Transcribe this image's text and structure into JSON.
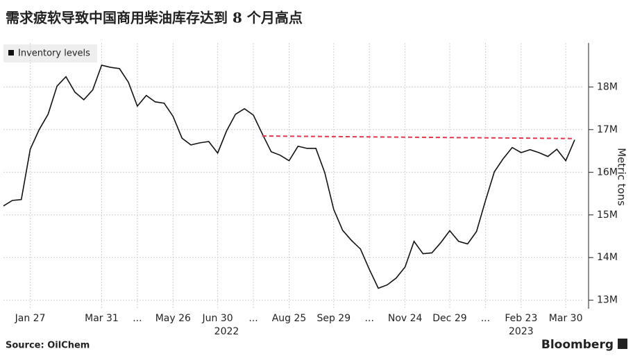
{
  "chart_data": {
    "type": "line",
    "title": "需求疲软导致中国商用柴油库存达到 8 个月高点",
    "y_axis_label": "Metric tons",
    "source": "Source: OilChem",
    "brand": "Bloomberg",
    "legend": "top-left",
    "grid": true,
    "categories": [
      null,
      null,
      null,
      "Jan 27",
      null,
      null,
      null,
      null,
      null,
      null,
      null,
      "Mar 31",
      null,
      null,
      null,
      "...",
      null,
      null,
      null,
      "May 26",
      null,
      null,
      null,
      null,
      "Jun 30",
      null,
      null,
      null,
      "...",
      null,
      null,
      null,
      "Aug 25",
      null,
      null,
      null,
      null,
      "Sep 29",
      null,
      null,
      null,
      "...",
      null,
      null,
      null,
      "Nov 24",
      null,
      null,
      null,
      null,
      "Dec 29",
      null,
      null,
      null,
      "...",
      null,
      null,
      null,
      "Feb 23",
      null,
      null,
      null,
      null,
      "Mar 30",
      null
    ],
    "year_labels": [
      {
        "index": 25,
        "label": "2022"
      },
      {
        "index": 58,
        "label": "2023"
      }
    ],
    "series": [
      {
        "name": "Inventory levels",
        "color": "#111111",
        "values": [
          15210000,
          15340000,
          15360000,
          16540000,
          17000000,
          17360000,
          18020000,
          18240000,
          17880000,
          17700000,
          17930000,
          18510000,
          18460000,
          18430000,
          18110000,
          17550000,
          17800000,
          17650000,
          17620000,
          17310000,
          16800000,
          16640000,
          16690000,
          16720000,
          16450000,
          16970000,
          17360000,
          17490000,
          17340000,
          16900000,
          16480000,
          16400000,
          16270000,
          16610000,
          16560000,
          16560000,
          15990000,
          15130000,
          14640000,
          14400000,
          14200000,
          13720000,
          13280000,
          13360000,
          13520000,
          13780000,
          14380000,
          14090000,
          14110000,
          14350000,
          14630000,
          14380000,
          14320000,
          14610000,
          15330000,
          16010000,
          16320000,
          16580000,
          16460000,
          16530000,
          16460000,
          16370000,
          16540000,
          16270000,
          16760000
        ]
      }
    ],
    "reference_line": {
      "color": "#e8334a",
      "x": [
        29,
        64
      ],
      "values": [
        16850000,
        16790000
      ]
    },
    "ylim": [
      12800000,
      19030000
    ],
    "yticks": [
      {
        "value": 13000000,
        "label": "13M"
      },
      {
        "value": 14000000,
        "label": "14M"
      },
      {
        "value": 15000000,
        "label": "15M"
      },
      {
        "value": 16000000,
        "label": "16M"
      },
      {
        "value": 17000000,
        "label": "17M"
      },
      {
        "value": 18000000,
        "label": "18M"
      }
    ]
  }
}
